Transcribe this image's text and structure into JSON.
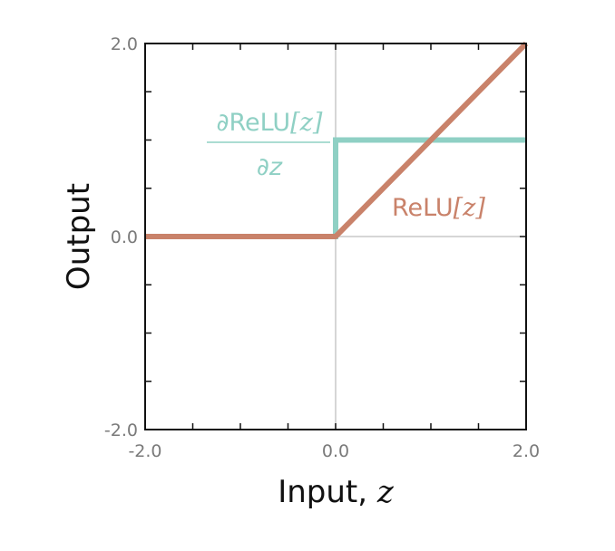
{
  "chart_data": {
    "type": "line",
    "xlabel": "Input, ",
    "xlabel_var": "z",
    "ylabel": "Output",
    "xlim": [
      -2.0,
      2.0
    ],
    "ylim": [
      -2.0,
      2.0
    ],
    "x_ticks": [
      "-2.0",
      "0.0",
      "2.0"
    ],
    "y_ticks": [
      "-2.0",
      "0.0",
      "2.0"
    ],
    "grid": "zero-lines only",
    "series": [
      {
        "label_main": "ReLU",
        "label_arg": "[z]",
        "color": "#c9826a",
        "x": [
          -2.0,
          0.0,
          2.0
        ],
        "y": [
          0.0,
          0.0,
          2.0
        ]
      },
      {
        "label_numerator_main": "∂ReLU",
        "label_numerator_arg": "[z]",
        "label_denominator": "∂z",
        "color": "#8fd0c4",
        "x": [
          -2.0,
          0.0,
          0.0,
          2.0
        ],
        "y": [
          0.0,
          0.0,
          1.0,
          1.0
        ]
      }
    ]
  }
}
